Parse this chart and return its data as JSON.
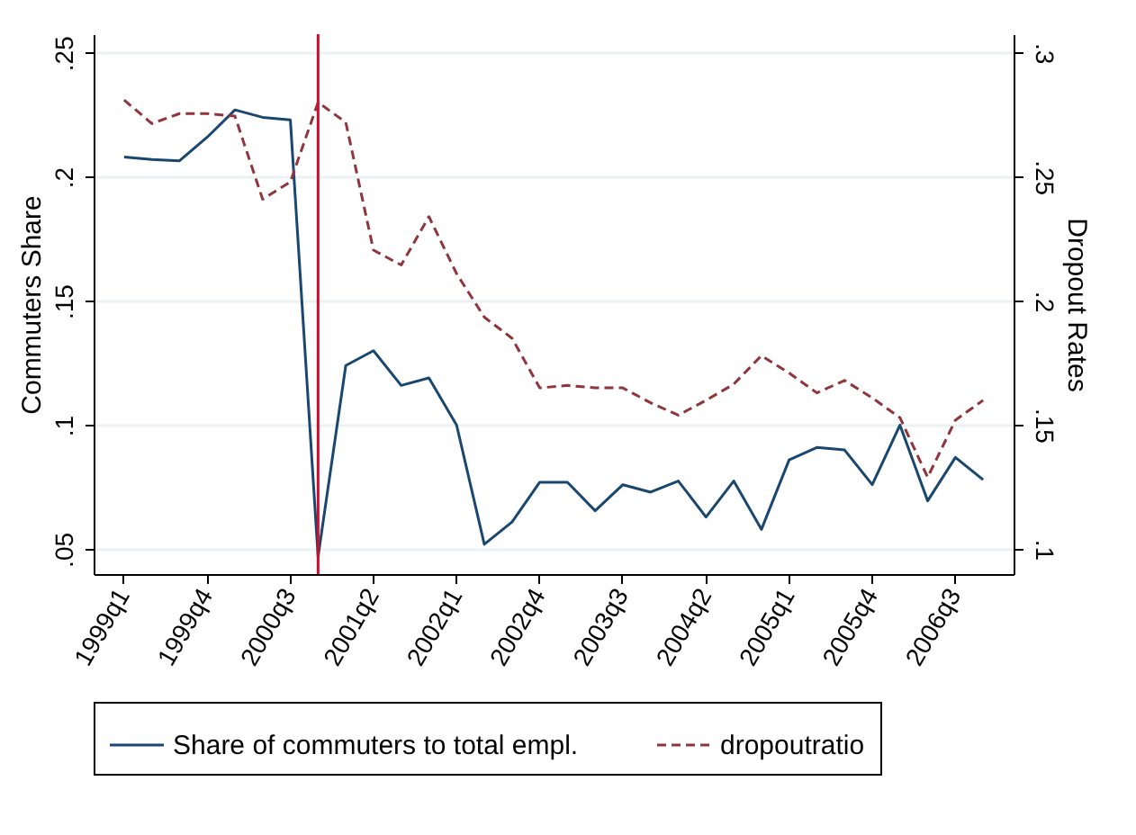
{
  "chart_data": {
    "type": "line",
    "ylabel": "Commuters Share",
    "y2label": "Dropout Rates",
    "categories": [
      "1999q1",
      null,
      null,
      "1999q4",
      null,
      null,
      "2000q3",
      null,
      null,
      "2001q2",
      null,
      null,
      "2002q1",
      null,
      null,
      "2002q4",
      null,
      null,
      "2003q3",
      null,
      null,
      "2004q2",
      null,
      null,
      "2005q1",
      null,
      null,
      "2005q4",
      null,
      null,
      "2006q3",
      null
    ],
    "series": [
      {
        "name": "Share of commuters to total empl.",
        "color": "#1a476f",
        "line_style": "solid",
        "values": [
          0.208,
          0.207,
          0.2065,
          0.216,
          0.227,
          0.224,
          0.223,
          0.047,
          0.124,
          0.13,
          0.116,
          0.119,
          0.1,
          0.052,
          0.061,
          0.077,
          0.077,
          0.0655,
          0.076,
          0.073,
          0.0775,
          0.063,
          0.0775,
          0.058,
          0.086,
          0.091,
          0.09,
          0.076,
          0.1,
          0.0695,
          0.087,
          0.078
        ]
      },
      {
        "name": "dropoutratio",
        "color": "#90353b",
        "line_style": "dashed",
        "axis": "y2",
        "values": [
          0.281,
          0.2715,
          0.2755,
          0.2755,
          0.2745,
          0.241,
          0.248,
          0.28,
          0.272,
          0.2205,
          0.2145,
          0.234,
          0.211,
          0.1935,
          0.185,
          0.165,
          0.166,
          0.165,
          0.165,
          0.159,
          0.154,
          0.16,
          0.1665,
          0.178,
          0.171,
          0.163,
          0.168,
          0.161,
          0.153,
          0.129,
          0.152,
          0.16
        ]
      }
    ],
    "ylim": [
      0.04,
      0.2575
    ],
    "yticks": [
      {
        "value": 0.05,
        "label": ".05"
      },
      {
        "value": 0.1,
        "label": ".1"
      },
      {
        "value": 0.15,
        "label": ".15"
      },
      {
        "value": 0.2,
        "label": ".2"
      },
      {
        "value": 0.25,
        "label": ".25"
      }
    ],
    "y2lim": [
      0.09,
      0.3075
    ],
    "y2ticks": [
      {
        "value": 0.1,
        "label": ".1"
      },
      {
        "value": 0.15,
        "label": ".15"
      },
      {
        "value": 0.2,
        "label": ".2"
      },
      {
        "value": 0.25,
        "label": ".25"
      },
      {
        "value": 0.3,
        "label": ".3"
      }
    ],
    "grid": "y",
    "legend": "bottom"
  }
}
